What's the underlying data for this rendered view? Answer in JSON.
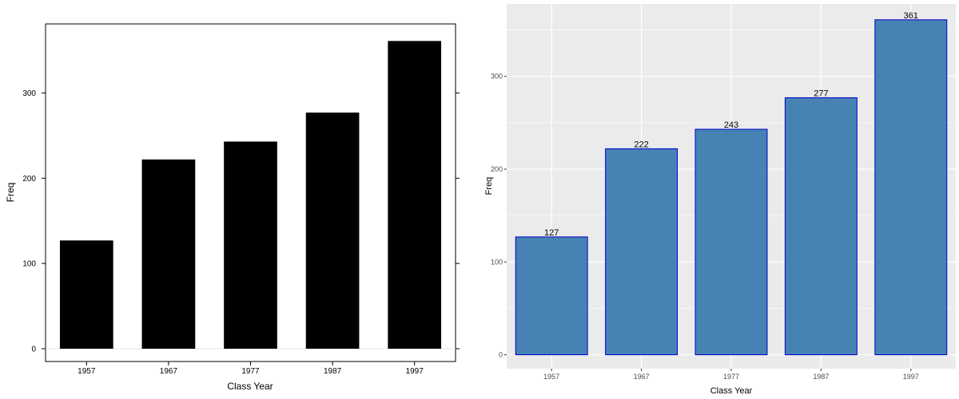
{
  "chart_data": [
    {
      "type": "bar",
      "style": "lattice",
      "categories": [
        "1957",
        "1967",
        "1977",
        "1987",
        "1997"
      ],
      "values": [
        127,
        222,
        243,
        277,
        361
      ],
      "xlabel": "Class Year",
      "ylabel": "Freq",
      "ylim": [
        -15,
        381
      ],
      "yticks": [
        0,
        100,
        200,
        300
      ],
      "ytick_labels": [
        "0",
        "100",
        "200",
        "300"
      ],
      "grid": false,
      "bar_color": "#000000",
      "zero_line_color": "#e6e6e6",
      "data_labels": false
    },
    {
      "type": "bar",
      "style": "ggplot",
      "categories": [
        "1957",
        "1967",
        "1977",
        "1987",
        "1997"
      ],
      "values": [
        127,
        222,
        243,
        277,
        361
      ],
      "data_labels": [
        "127",
        "222",
        "243",
        "277",
        "361"
      ],
      "xlabel": "Class Year",
      "ylabel": "Freq",
      "ylim": [
        -15,
        378
      ],
      "yticks": [
        0,
        100,
        200,
        300
      ],
      "ytick_labels": [
        "0",
        "100",
        "200",
        "300"
      ],
      "grid": true,
      "bar_color": "#4682b4",
      "bar_outline": "#0000cd",
      "panel_background": "#ebebeb",
      "grid_color": "#ffffff"
    }
  ]
}
